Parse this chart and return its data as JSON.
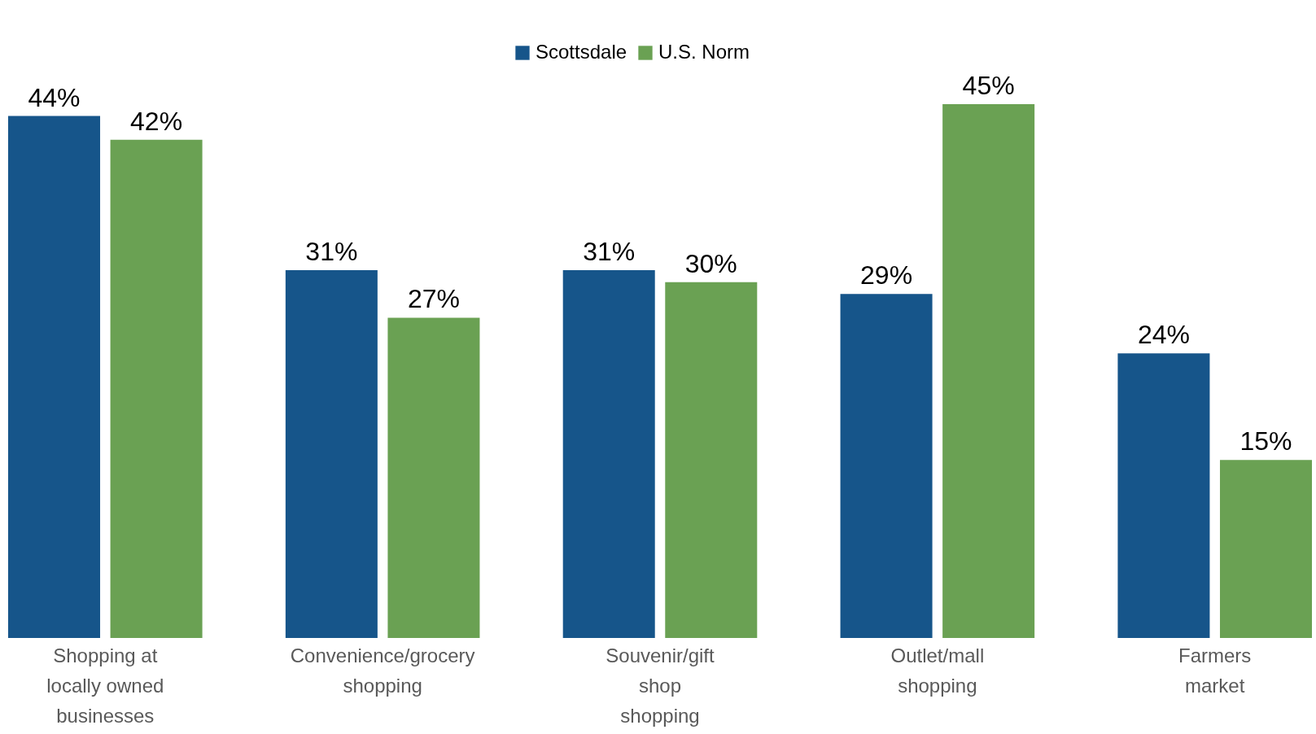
{
  "chart_data": {
    "type": "bar",
    "categories": [
      "Shopping at\nlocally owned\nbusinesses",
      "Convenience/grocery\nshopping",
      "Souvenir/gift\nshop\nshopping",
      "Outlet/mall\nshopping",
      "Farmers\nmarket"
    ],
    "series": [
      {
        "name": "Scottsdale",
        "color": "#16558a",
        "values": [
          44,
          31,
          31,
          29,
          24
        ],
        "value_labels": [
          "44%",
          "31%",
          "31%",
          "29%",
          "24%"
        ]
      },
      {
        "name": "U.S. Norm",
        "color": "#6aa153",
        "values": [
          42,
          27,
          30,
          45,
          15
        ],
        "value_labels": [
          "42%",
          "27%",
          "30%",
          "45%",
          "15%"
        ]
      }
    ],
    "legend": "top"
  }
}
